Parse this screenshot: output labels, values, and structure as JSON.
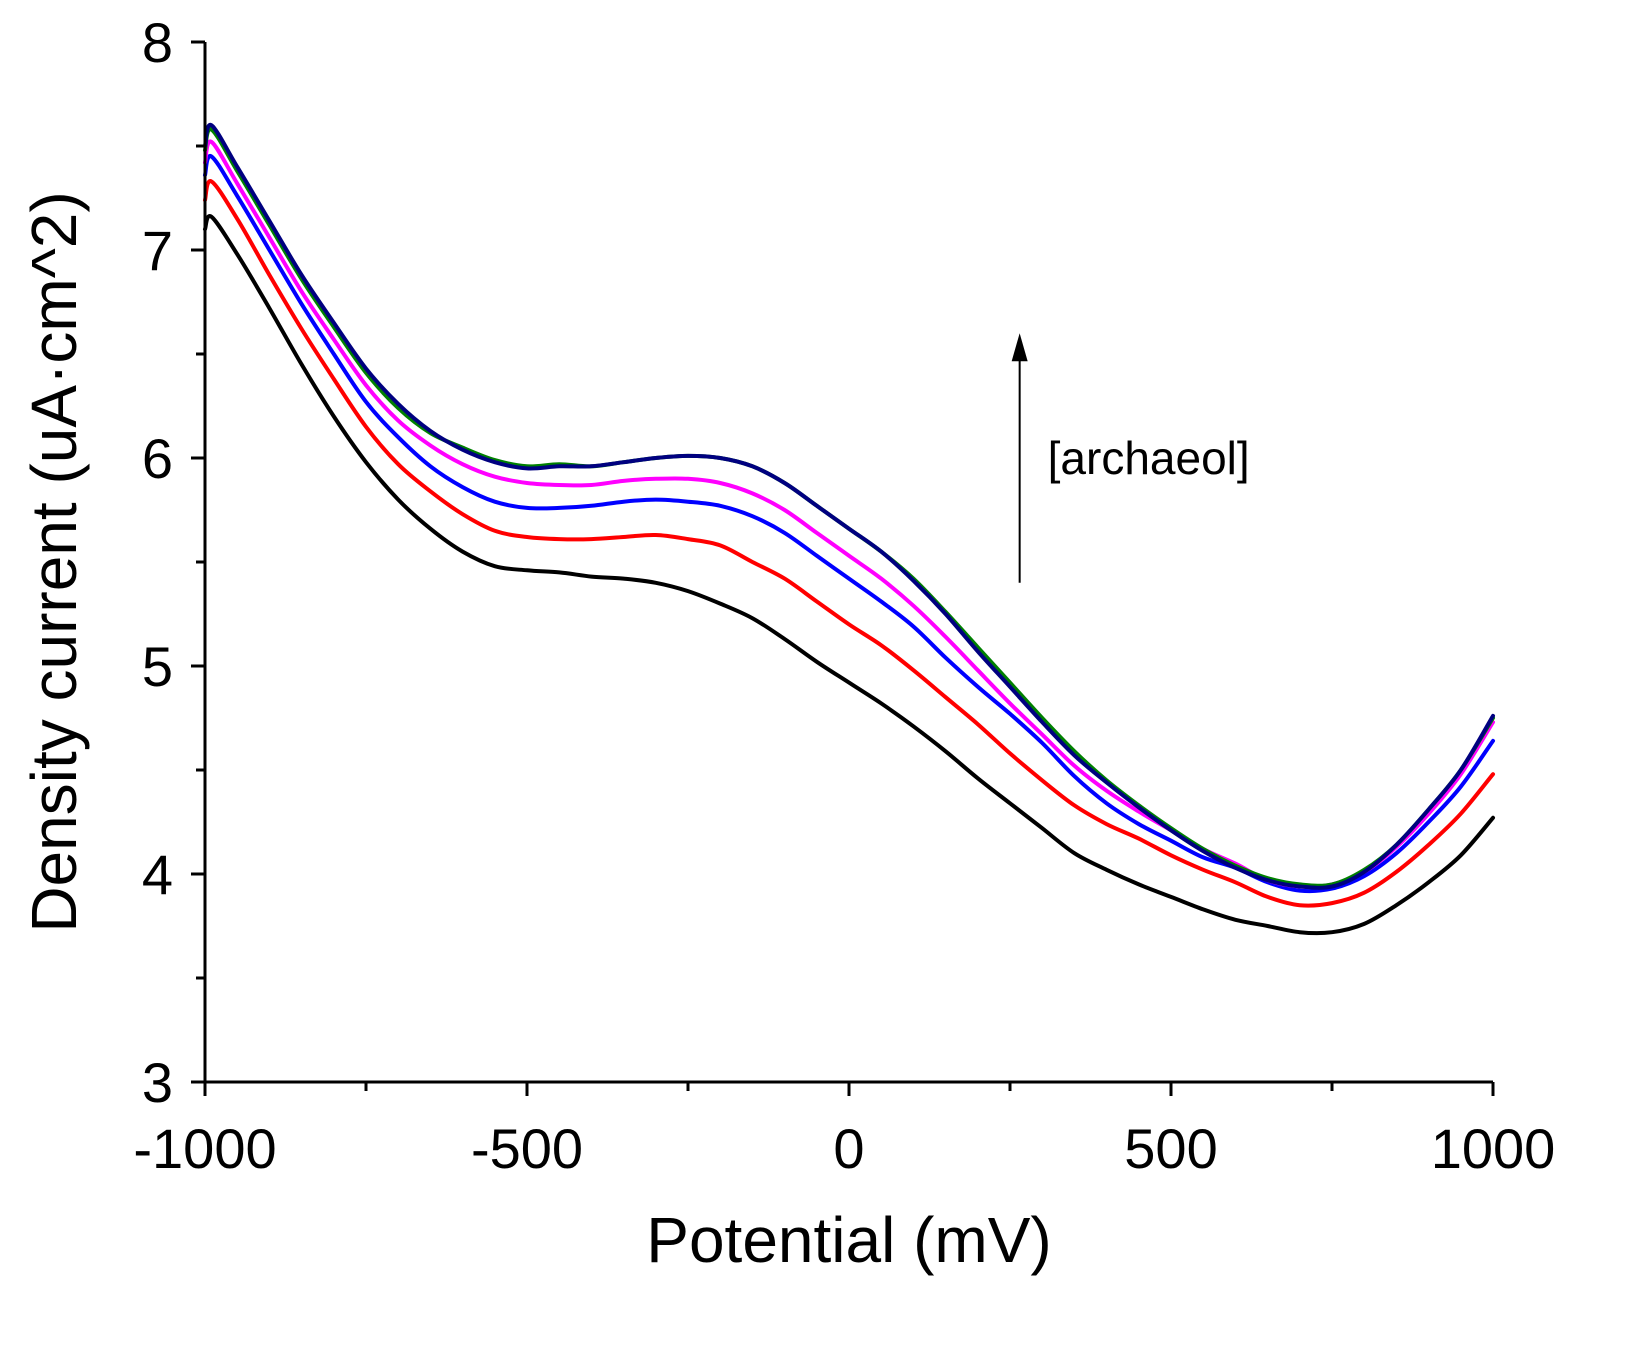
{
  "chart_data": {
    "type": "line",
    "title": "",
    "xlabel": "Potential (mV)",
    "ylabel": "Density current (uA·cm^2)",
    "xlim": [
      -1000,
      1000
    ],
    "ylim": [
      3,
      8
    ],
    "x_ticks": [
      -1000,
      -500,
      0,
      500,
      1000
    ],
    "x_tick_labels": [
      "-1000",
      "-500",
      "0",
      "500",
      "1000"
    ],
    "y_ticks": [
      3,
      4,
      5,
      6,
      7,
      8
    ],
    "y_tick_labels": [
      "3",
      "4",
      "5",
      "6",
      "7",
      "8"
    ],
    "grid": false,
    "legend": "none",
    "annotation": {
      "text": "[archaeol]",
      "arrow": "up",
      "x": 265,
      "y_from": 5.4,
      "y_to": 6.6,
      "label_y": 6.0
    },
    "x": [
      -1000,
      -990,
      -950,
      -900,
      -850,
      -800,
      -750,
      -700,
      -650,
      -600,
      -550,
      -500,
      -450,
      -400,
      -350,
      -300,
      -250,
      -200,
      -150,
      -100,
      -50,
      0,
      50,
      100,
      150,
      200,
      250,
      300,
      350,
      400,
      450,
      500,
      550,
      600,
      650,
      700,
      750,
      800,
      850,
      900,
      950,
      1000
    ],
    "series": [
      {
        "name": "series-black",
        "color": "#000000",
        "values": [
          7.1,
          7.16,
          6.98,
          6.72,
          6.45,
          6.2,
          5.98,
          5.8,
          5.66,
          5.55,
          5.48,
          5.46,
          5.45,
          5.43,
          5.42,
          5.4,
          5.36,
          5.3,
          5.23,
          5.13,
          5.02,
          4.92,
          4.82,
          4.71,
          4.59,
          4.46,
          4.34,
          4.22,
          4.1,
          4.02,
          3.95,
          3.89,
          3.83,
          3.78,
          3.75,
          3.72,
          3.72,
          3.76,
          3.85,
          3.96,
          4.09,
          4.27
        ]
      },
      {
        "name": "series-red",
        "color": "#ff0000",
        "values": [
          7.24,
          7.33,
          7.15,
          6.88,
          6.62,
          6.38,
          6.15,
          5.97,
          5.84,
          5.73,
          5.65,
          5.62,
          5.61,
          5.61,
          5.62,
          5.63,
          5.61,
          5.58,
          5.5,
          5.42,
          5.31,
          5.2,
          5.1,
          4.98,
          4.85,
          4.72,
          4.58,
          4.45,
          4.33,
          4.24,
          4.17,
          4.09,
          4.02,
          3.96,
          3.89,
          3.85,
          3.86,
          3.91,
          4.01,
          4.14,
          4.29,
          4.48
        ]
      },
      {
        "name": "series-blue",
        "color": "#0000ff",
        "values": [
          7.36,
          7.45,
          7.26,
          7.0,
          6.74,
          6.5,
          6.27,
          6.1,
          5.96,
          5.86,
          5.79,
          5.76,
          5.76,
          5.77,
          5.79,
          5.8,
          5.79,
          5.77,
          5.72,
          5.64,
          5.53,
          5.42,
          5.31,
          5.19,
          5.04,
          4.9,
          4.77,
          4.63,
          4.47,
          4.34,
          4.24,
          4.16,
          4.08,
          4.03,
          3.96,
          3.92,
          3.93,
          3.99,
          4.1,
          4.25,
          4.42,
          4.64
        ]
      },
      {
        "name": "series-magenta",
        "color": "#ff00ff",
        "values": [
          7.42,
          7.52,
          7.32,
          7.06,
          6.8,
          6.57,
          6.35,
          6.18,
          6.06,
          5.97,
          5.91,
          5.88,
          5.87,
          5.87,
          5.89,
          5.9,
          5.9,
          5.88,
          5.83,
          5.75,
          5.64,
          5.53,
          5.42,
          5.29,
          5.14,
          4.98,
          4.82,
          4.67,
          4.52,
          4.4,
          4.3,
          4.21,
          4.12,
          4.05,
          3.97,
          3.94,
          3.95,
          4.01,
          4.13,
          4.29,
          4.48,
          4.73
        ]
      },
      {
        "name": "series-green",
        "color": "#008000",
        "values": [
          7.48,
          7.58,
          7.38,
          7.12,
          6.86,
          6.63,
          6.41,
          6.24,
          6.12,
          6.05,
          5.99,
          5.96,
          5.97,
          5.96,
          5.98,
          6.0,
          6.01,
          6.0,
          5.96,
          5.88,
          5.77,
          5.66,
          5.55,
          5.42,
          5.26,
          5.09,
          4.92,
          4.75,
          4.59,
          4.45,
          4.33,
          4.22,
          4.12,
          4.04,
          3.98,
          3.95,
          3.95,
          4.02,
          4.14,
          4.31,
          4.5,
          4.75
        ]
      },
      {
        "name": "series-navy",
        "color": "#000080",
        "values": [
          7.5,
          7.6,
          7.4,
          7.14,
          6.88,
          6.65,
          6.43,
          6.26,
          6.13,
          6.04,
          5.98,
          5.95,
          5.96,
          5.96,
          5.98,
          6.0,
          6.01,
          6.0,
          5.96,
          5.88,
          5.77,
          5.66,
          5.55,
          5.41,
          5.25,
          5.07,
          4.9,
          4.73,
          4.57,
          4.44,
          4.32,
          4.21,
          4.11,
          4.03,
          3.97,
          3.94,
          3.94,
          4.01,
          4.14,
          4.31,
          4.5,
          4.76
        ]
      }
    ]
  }
}
